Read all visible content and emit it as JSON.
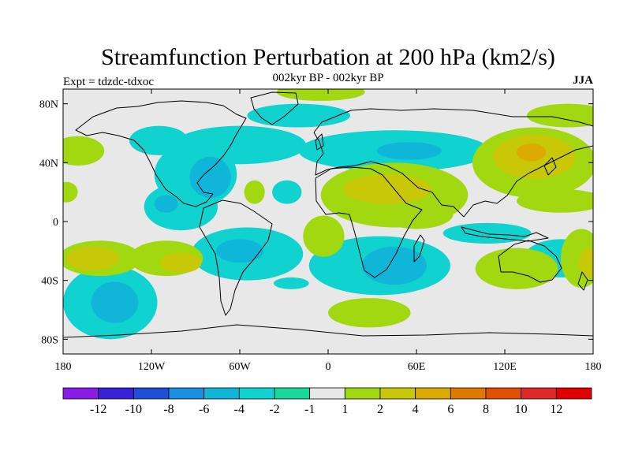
{
  "chart_data": {
    "type": "heatmap",
    "title": "Streamfunction Perturbation at 200 hPa (km2/s)",
    "subtitle": "002kyr BP - 002kyr BP",
    "left_label": "Expt = tdzdc-tdxoc",
    "right_label": "JJA",
    "lon_range": [
      -180,
      180
    ],
    "lat_range": [
      -90,
      90
    ],
    "x_ticks": [
      {
        "value": -180,
        "label": "180"
      },
      {
        "value": -120,
        "label": "120W"
      },
      {
        "value": -60,
        "label": "60W"
      },
      {
        "value": 0,
        "label": "0"
      },
      {
        "value": 60,
        "label": "60E"
      },
      {
        "value": 120,
        "label": "120E"
      },
      {
        "value": 180,
        "label": "180"
      }
    ],
    "y_ticks": [
      {
        "value": 80,
        "label": "80N"
      },
      {
        "value": 40,
        "label": "40N"
      },
      {
        "value": 0,
        "label": "0"
      },
      {
        "value": -40,
        "label": "40S"
      },
      {
        "value": -80,
        "label": "80S"
      }
    ],
    "colorbar": {
      "levels": [
        -12,
        -10,
        -8,
        -6,
        -4,
        -2,
        -1,
        1,
        2,
        4,
        6,
        8,
        10,
        12
      ],
      "labels": [
        "-12",
        "-10",
        "-8",
        "-6",
        "-4",
        "-2",
        "-1",
        "1",
        "2",
        "4",
        "6",
        "8",
        "10",
        "12"
      ],
      "colors": [
        "#8a1be6",
        "#3a1fd9",
        "#1f4fd6",
        "#1a8ee0",
        "#10b6d8",
        "#10d2cf",
        "#18d99a",
        "#e8e8e8",
        "#a2d810",
        "#c8c808",
        "#dcaa00",
        "#e07800",
        "#e05000",
        "#e02828",
        "#e00000"
      ]
    },
    "anomalies": [
      {
        "lon": -60,
        "lat": 52,
        "rx": 45,
        "ry": 13,
        "value": -2
      },
      {
        "lon": -115,
        "lat": 55,
        "rx": 20,
        "ry": 10,
        "value": -2
      },
      {
        "lon": -90,
        "lat": 32,
        "rx": 28,
        "ry": 22,
        "value": -2
      },
      {
        "lon": -80,
        "lat": 30,
        "rx": 14,
        "ry": 14,
        "value": -4
      },
      {
        "lon": -100,
        "lat": 10,
        "rx": 25,
        "ry": 16,
        "value": -2
      },
      {
        "lon": -110,
        "lat": 12,
        "rx": 8,
        "ry": 6,
        "value": -4
      },
      {
        "lon": -55,
        "lat": -22,
        "rx": 38,
        "ry": 18,
        "value": -2
      },
      {
        "lon": -60,
        "lat": -20,
        "rx": 16,
        "ry": 8,
        "value": -4
      },
      {
        "lon": -148,
        "lat": -55,
        "rx": 32,
        "ry": 25,
        "value": -2
      },
      {
        "lon": -145,
        "lat": -55,
        "rx": 16,
        "ry": 14,
        "value": -4
      },
      {
        "lon": 35,
        "lat": -30,
        "rx": 48,
        "ry": 20,
        "value": -2
      },
      {
        "lon": 45,
        "lat": -30,
        "rx": 22,
        "ry": 13,
        "value": -4
      },
      {
        "lon": 45,
        "lat": 48,
        "rx": 65,
        "ry": 14,
        "value": -2
      },
      {
        "lon": 55,
        "lat": 48,
        "rx": 22,
        "ry": 6,
        "value": -4
      },
      {
        "lon": -20,
        "lat": 72,
        "rx": 35,
        "ry": 8,
        "value": -2
      },
      {
        "lon": 108,
        "lat": -8,
        "rx": 30,
        "ry": 7,
        "value": -2
      },
      {
        "lon": 158,
        "lat": -25,
        "rx": 25,
        "ry": 13,
        "value": -2
      },
      {
        "lon": -25,
        "lat": -42,
        "rx": 12,
        "ry": 4,
        "value": -2
      },
      {
        "lon": -28,
        "lat": 20,
        "rx": 10,
        "ry": 8,
        "value": -2
      },
      {
        "lon": 45,
        "lat": 18,
        "rx": 50,
        "ry": 22,
        "value": 2
      },
      {
        "lon": 40,
        "lat": 22,
        "rx": 30,
        "ry": 10,
        "value": 4
      },
      {
        "lon": 60,
        "lat": 5,
        "rx": 25,
        "ry": 10,
        "value": 2
      },
      {
        "lon": 140,
        "lat": 40,
        "rx": 42,
        "ry": 24,
        "value": 2
      },
      {
        "lon": 140,
        "lat": 44,
        "rx": 28,
        "ry": 15,
        "value": 4
      },
      {
        "lon": 138,
        "lat": 47,
        "rx": 10,
        "ry": 6,
        "value": 6
      },
      {
        "lon": 158,
        "lat": 14,
        "rx": 30,
        "ry": 8,
        "value": 2
      },
      {
        "lon": 128,
        "lat": -32,
        "rx": 28,
        "ry": 14,
        "value": 2
      },
      {
        "lon": 172,
        "lat": -25,
        "rx": 14,
        "ry": 20,
        "value": 2
      },
      {
        "lon": 178,
        "lat": -28,
        "rx": 8,
        "ry": 10,
        "value": 4
      },
      {
        "lon": -155,
        "lat": -25,
        "rx": 28,
        "ry": 12,
        "value": 2
      },
      {
        "lon": -160,
        "lat": -25,
        "rx": 18,
        "ry": 8,
        "value": 4
      },
      {
        "lon": -110,
        "lat": -25,
        "rx": 25,
        "ry": 12,
        "value": 2
      },
      {
        "lon": -100,
        "lat": -28,
        "rx": 14,
        "ry": 7,
        "value": 4
      },
      {
        "lon": -170,
        "lat": 48,
        "rx": 18,
        "ry": 10,
        "value": 2
      },
      {
        "lon": -178,
        "lat": 20,
        "rx": 8,
        "ry": 7,
        "value": 2
      },
      {
        "lon": -50,
        "lat": 20,
        "rx": 7,
        "ry": 8,
        "value": 2
      },
      {
        "lon": 28,
        "lat": -62,
        "rx": 28,
        "ry": 10,
        "value": 2
      },
      {
        "lon": -5,
        "lat": 88,
        "rx": 30,
        "ry": 6,
        "value": 2
      },
      {
        "lon": 163,
        "lat": 72,
        "rx": 28,
        "ry": 8,
        "value": 2
      },
      {
        "lon": -3,
        "lat": -10,
        "rx": 14,
        "ry": 14,
        "value": 2
      }
    ]
  }
}
